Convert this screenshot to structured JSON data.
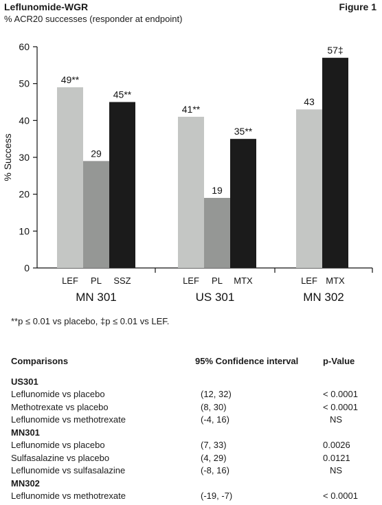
{
  "header": {
    "title": "Leflunomide-WGR",
    "figure_label": "Figure 1",
    "subtitle": "% ACR20 successes (responder at endpoint)"
  },
  "chart_data": {
    "type": "bar",
    "ylabel": "% Success",
    "ylim": [
      0,
      60
    ],
    "yticks": [
      0,
      10,
      20,
      30,
      40,
      50,
      60
    ],
    "colors": {
      "LEF": "#c4c6c4",
      "PL": "#959795",
      "SSZ": "#1b1b1b",
      "MTX": "#1b1b1b"
    },
    "groups": [
      {
        "name": "MN 301",
        "bars": [
          {
            "label": "LEF",
            "value": 49,
            "data_label": "49**"
          },
          {
            "label": "PL",
            "value": 29,
            "data_label": "29"
          },
          {
            "label": "SSZ",
            "value": 45,
            "data_label": "45**"
          }
        ]
      },
      {
        "name": "US 301",
        "bars": [
          {
            "label": "LEF",
            "value": 41,
            "data_label": "41**"
          },
          {
            "label": "PL",
            "value": 19,
            "data_label": "19"
          },
          {
            "label": "MTX",
            "value": 35,
            "data_label": "35**"
          }
        ]
      },
      {
        "name": "MN 302",
        "bars": [
          {
            "label": "LEF",
            "value": 43,
            "data_label": "43"
          },
          {
            "label": "MTX",
            "value": 57,
            "data_label": "57‡"
          }
        ]
      }
    ]
  },
  "footnote": "**p ≤ 0.01 vs placebo, ‡p ≤ 0.01 vs LEF.",
  "table": {
    "headers": [
      "Comparisons",
      "95% Confidence interval",
      "p-Value"
    ],
    "groups": [
      {
        "name": "US301",
        "rows": [
          [
            "Leflunomide vs placebo",
            "(12, 32)",
            "< 0.0001"
          ],
          [
            "Methotrexate vs placebo",
            "(8, 30)",
            "< 0.0001"
          ],
          [
            "Leflunomide vs methotrexate",
            "(-4, 16)",
            "NS"
          ]
        ]
      },
      {
        "name": "MN301",
        "rows": [
          [
            "Leflunomide vs placebo",
            "(7, 33)",
            "0.0026"
          ],
          [
            "Sulfasalazine vs placebo",
            "(4, 29)",
            "0.0121"
          ],
          [
            "Leflunomide vs sulfasalazine",
            "(-8, 16)",
            "NS"
          ]
        ]
      },
      {
        "name": "MN302",
        "rows": [
          [
            "Leflunomide vs methotrexate",
            "(-19, -7)",
            "< 0.0001"
          ]
        ]
      }
    ]
  }
}
